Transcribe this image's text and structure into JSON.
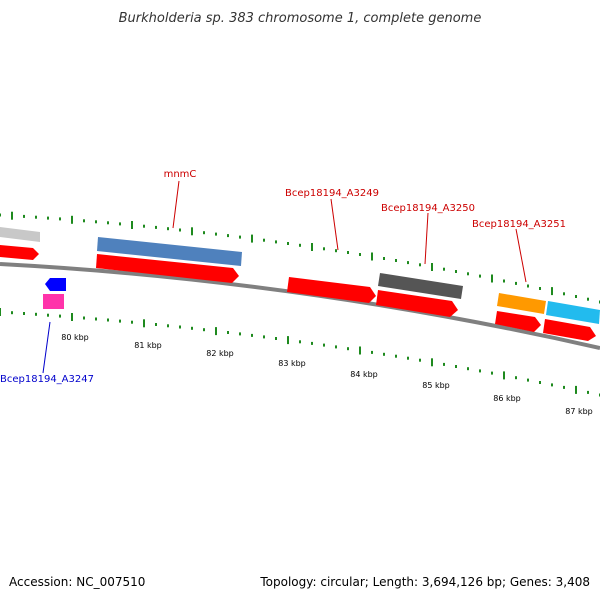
{
  "title": "Burkholderia sp. 383 chromosome 1, complete genome",
  "footer": {
    "accession": "Accession: NC_007510",
    "summary": "Topology: circular; Length: 3,694,126 bp; Genes: 3,408"
  },
  "colors": {
    "title_text": "#333333",
    "tick": "#1e8a1e",
    "backbone": "#808080",
    "cds": "#ff0000",
    "gene_bar_grey": "#c8c8c8",
    "gene_bar_steelblue": "#4f81bd",
    "gene_bar_darkgrey": "#555555",
    "gene_bar_orange": "#ff9900",
    "gene_bar_skyblue": "#22bbee",
    "small_blue": "#0000ff",
    "small_pink": "#ff33aa",
    "label_red": "#cc0000",
    "label_blue": "#0000cc"
  },
  "ruler_labels": [
    "80 kbp",
    "81 kbp",
    "82 kbp",
    "83 kbp",
    "84 kbp",
    "85 kbp",
    "86 kbp",
    "87 kbp"
  ],
  "gene_labels": [
    {
      "id": "mnmC",
      "text": "mnmC",
      "color": "label_red"
    },
    {
      "id": "a3249",
      "text": "Bcep18194_A3249",
      "color": "label_red"
    },
    {
      "id": "a3250",
      "text": "Bcep18194_A3250",
      "color": "label_red"
    },
    {
      "id": "a3251",
      "text": "Bcep18194_A3251",
      "color": "label_red"
    },
    {
      "id": "a3247",
      "text": "Bcep18194_A3247",
      "color": "label_blue"
    }
  ]
}
